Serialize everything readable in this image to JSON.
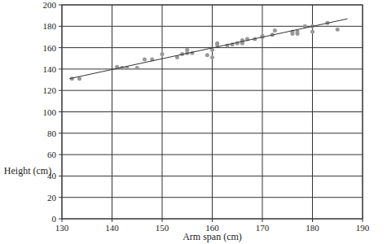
{
  "chart_data": {
    "type": "scatter",
    "x_label": "Arm span (cm)",
    "y_label": "Height (cm)",
    "xlim": [
      130,
      190
    ],
    "ylim": [
      0,
      200
    ],
    "xticks": [
      130,
      140,
      150,
      160,
      170,
      180,
      190
    ],
    "yticks": [
      0,
      20,
      40,
      60,
      80,
      100,
      120,
      140,
      160,
      180,
      200
    ],
    "grid": true,
    "series": [
      {
        "type": "scatter",
        "color": "#999999",
        "marker": "circle",
        "x": [
          132,
          133.5,
          141,
          142,
          143,
          145,
          146.5,
          148,
          150,
          153,
          154,
          155,
          155,
          156,
          159,
          160,
          160,
          161,
          161,
          163,
          164,
          165,
          166,
          166,
          166,
          167,
          168.5,
          170,
          170,
          172,
          172.5,
          176,
          176,
          177,
          177,
          178.5,
          180,
          180,
          183,
          185
        ],
        "values": [
          131,
          131,
          142,
          141,
          141,
          141,
          149,
          149,
          154,
          151,
          154,
          158,
          155,
          155,
          153,
          151,
          158,
          163,
          164,
          162,
          163,
          164,
          164,
          166,
          167,
          168,
          168,
          170,
          171,
          172,
          176,
          175,
          173,
          173,
          175,
          180,
          175,
          180,
          183,
          177
        ]
      },
      {
        "type": "line",
        "color": "#333333",
        "line_style": "solid",
        "x": [
          131.5,
          187
        ],
        "values": [
          131,
          187
        ]
      }
    ]
  }
}
